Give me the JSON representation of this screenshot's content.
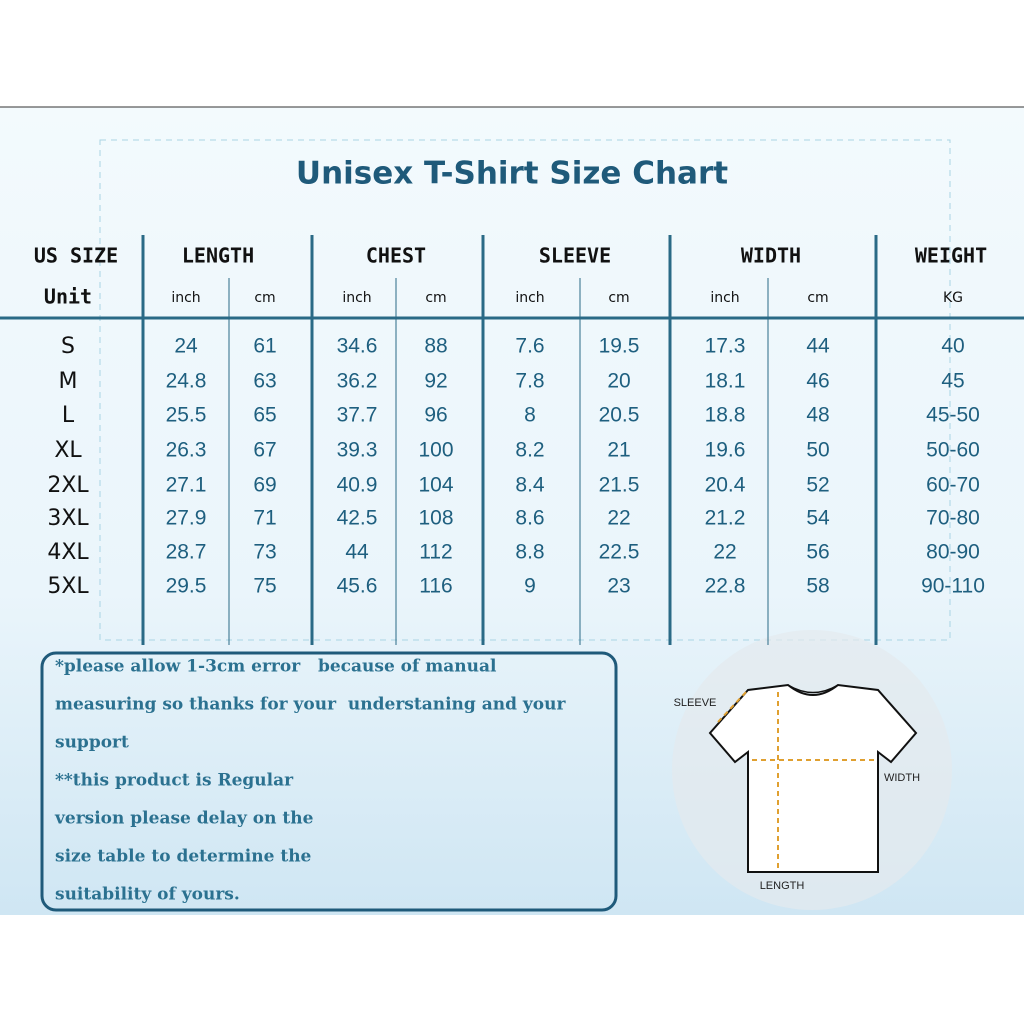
{
  "title": "Unisex T-Shirt Size Chart",
  "table": {
    "header": [
      "US SIZE",
      "LENGTH",
      "CHEST",
      "SLEEVE",
      "WIDTH",
      "WEIGHT"
    ],
    "units": [
      "Unit",
      "inch",
      "cm",
      "inch",
      "cm",
      "inch",
      "cm",
      "inch",
      "cm",
      "KG"
    ],
    "rows": [
      [
        "S",
        "24",
        "61",
        "34.6",
        "88",
        "7.6",
        "19.5",
        "17.3",
        "44",
        "40"
      ],
      [
        "M",
        "24.8",
        "63",
        "36.2",
        "92",
        "7.8",
        "20",
        "18.1",
        "46",
        "45"
      ],
      [
        "L",
        "25.5",
        "65",
        "37.7",
        "96",
        "8",
        "20.5",
        "18.8",
        "48",
        "45-50"
      ],
      [
        "XL",
        "26.3",
        "67",
        "39.3",
        "100",
        "8.2",
        "21",
        "19.6",
        "50",
        "50-60"
      ],
      [
        "2XL",
        "27.1",
        "69",
        "40.9",
        "104",
        "8.4",
        "21.5",
        "20.4",
        "52",
        "60-70"
      ],
      [
        "3XL",
        "27.9",
        "71",
        "42.5",
        "108",
        "8.6",
        "22",
        "21.2",
        "54",
        "70-80"
      ],
      [
        "4XL",
        "28.7",
        "73",
        "44",
        "112",
        "8.8",
        "22.5",
        "22",
        "56",
        "80-90"
      ],
      [
        "5XL",
        "29.5",
        "75",
        "45.6",
        "116",
        "9",
        "23",
        "22.8",
        "58",
        "90-110"
      ]
    ]
  },
  "notes": [
    "*please allow 1-3cm error   because of manual",
    "measuring so thanks for your  understaning and your",
    "support",
    "**this product is Regular",
    "version please delay on the",
    "size table to determine the",
    "suitability of yours."
  ],
  "diagram": {
    "sleeve": "SLEEVE",
    "width": "WIDTH",
    "length": "LENGTH"
  }
}
